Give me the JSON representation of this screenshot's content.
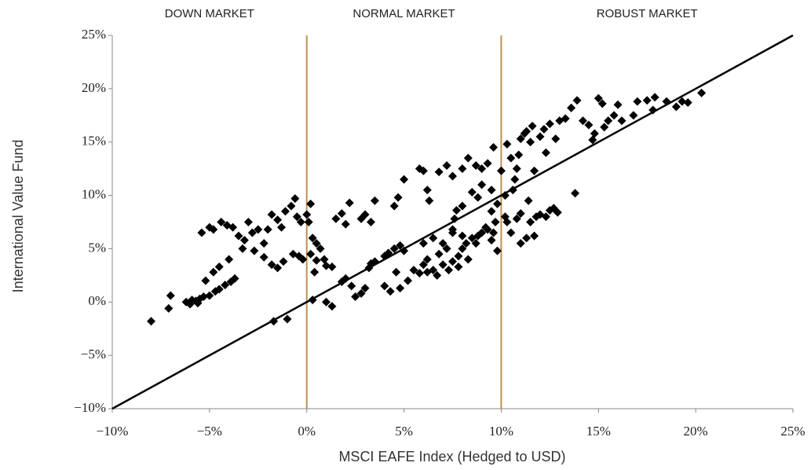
{
  "chart_data": {
    "type": "scatter",
    "x_label": "MSCI EAFE Index (Hedged to USD)",
    "y_label": "International Value Fund",
    "regions": [
      "DOWN MARKET",
      "NORMAL MARKET",
      "ROBUST MARKET"
    ],
    "vlines": [
      0,
      10
    ],
    "vline_color": "#c09050",
    "identity_line": true,
    "color": "#000000",
    "xlim": [
      -10,
      25
    ],
    "ylim": [
      -10,
      25
    ],
    "xticks": [
      {
        "value": -10,
        "label": "−10%"
      },
      {
        "value": -5,
        "label": "−5%"
      },
      {
        "value": 0,
        "label": "0%"
      },
      {
        "value": 5,
        "label": "5%"
      },
      {
        "value": 10,
        "label": "10%"
      },
      {
        "value": 15,
        "label": "15%"
      },
      {
        "value": 20,
        "label": "20%"
      },
      {
        "value": 25,
        "label": "25%"
      }
    ],
    "yticks": [
      {
        "value": -10,
        "label": "−10%"
      },
      {
        "value": -5,
        "label": "−5%"
      },
      {
        "value": 0,
        "label": "0%"
      },
      {
        "value": 5,
        "label": "5%"
      },
      {
        "value": 10,
        "label": "10%"
      },
      {
        "value": 15,
        "label": "15%"
      },
      {
        "value": 20,
        "label": "20%"
      },
      {
        "value": 25,
        "label": "25%"
      }
    ],
    "x": [
      -8,
      -7,
      -7.1,
      -6.2,
      -6,
      -5.9,
      -5.7,
      -5.5,
      -5.3,
      -5.6,
      -5,
      -4.7,
      -4.5,
      -4.2,
      -3.9,
      -5.2,
      -5.4,
      -5,
      -4.8,
      -4.4,
      -4.1,
      -3.8,
      -3.5,
      -3.2,
      -3,
      -2.8,
      -2.5,
      -2.2,
      -2,
      -1.8,
      -1.5,
      -1.3,
      -1.1,
      -0.8,
      -0.6,
      -0.5,
      -0.3,
      -4.5,
      -4,
      -3.7,
      -1.8,
      -1.5,
      -1.2,
      -0.7,
      -0.4,
      -0.2,
      -1.7,
      -1,
      -4.8,
      -3.3,
      -2.7,
      -2.2,
      0,
      0.2,
      0.1,
      0.3,
      0.5,
      0.7,
      0.9,
      1,
      0.5,
      0.2,
      0.4,
      0.3,
      1,
      1.3,
      1.3,
      1.5,
      1.8,
      2,
      2.2,
      2.8,
      3,
      3.3,
      3.5,
      4.5,
      4.7,
      5,
      1.8,
      2,
      2.3,
      2.5,
      2.8,
      3,
      3.2,
      3.5,
      3.3,
      4,
      4.2,
      4.5,
      4.8,
      5,
      4,
      4.3,
      4.8,
      5.2,
      4.6,
      5.5,
      5.8,
      6,
      6.2,
      6.5,
      6.8,
      7,
      7.2,
      7.5,
      7.8,
      8,
      8.2,
      8.5,
      8.8,
      9,
      9.3,
      9.5,
      9.8,
      6,
      6.5,
      7,
      7.5,
      8,
      6.2,
      6.7,
      7.3,
      7.8,
      8.3,
      8.7,
      9.2,
      9.6,
      5.8,
      6,
      6.3,
      6.2,
      6.8,
      7.2,
      7.5,
      8,
      8.3,
      8.7,
      9,
      9.3,
      9.6,
      9.5,
      9.8,
      8.5,
      8.8,
      9,
      7.5,
      7.6,
      7.7,
      8,
      9.5,
      9.7,
      10,
      10.2,
      10.3,
      10.5,
      10.8,
      11,
      11.2,
      11.5,
      11.6,
      12,
      12.2,
      12.5,
      12.8,
      13,
      13.3,
      13.6,
      13.9,
      14.2,
      14.5,
      14.8,
      15,
      15.3,
      15.5,
      15.8,
      16,
      14.7,
      15.2,
      16.2,
      17,
      17.5,
      17.8,
      17.9,
      18.5,
      19,
      19.3,
      19.6,
      20.3,
      16.8,
      13.8,
      10.3,
      10.5,
      10.8,
      11,
      11.3,
      11.5,
      11.7,
      11.8,
      12,
      12.3,
      12.5,
      12.7,
      12.9,
      11,
      10.2,
      10.7,
      11.4,
      11.7,
      10.6,
      12.3,
      11.3,
      10.9
    ],
    "values": [
      -1.8,
      0.6,
      -0.6,
      0,
      -0.2,
      0.2,
      0.1,
      0.3,
      0.5,
      -0.1,
      0.6,
      1,
      1.2,
      1.6,
      1.9,
      2,
      6.5,
      7,
      6.8,
      7.5,
      7.2,
      7,
      6.2,
      5.8,
      7.5,
      6.5,
      6.8,
      5.5,
      6.8,
      8.2,
      7.7,
      7,
      8.5,
      9,
      9.7,
      8,
      7.5,
      3.3,
      4,
      2.2,
      3.5,
      3.2,
      3.8,
      4.5,
      4.3,
      4,
      -1.8,
      -1.6,
      2.8,
      5,
      4.8,
      4.2,
      8.2,
      9.2,
      7.5,
      6,
      5.5,
      5,
      4,
      3.4,
      3.9,
      4.5,
      2.8,
      0.2,
      0,
      -0.4,
      3.3,
      7.8,
      8.3,
      7.3,
      9.3,
      7.8,
      8.2,
      7.5,
      9.5,
      9,
      9.8,
      11.5,
      1.9,
      2.2,
      1.5,
      0.5,
      0.8,
      1.3,
      3.2,
      3.8,
      3.6,
      4.3,
      4.6,
      5,
      5.3,
      4.8,
      1.5,
      1,
      1.3,
      2,
      2.8,
      3,
      2.7,
      3.5,
      4,
      3,
      4.5,
      3.5,
      5,
      3.8,
      4.3,
      5,
      5.5,
      6,
      6.2,
      6.5,
      6.8,
      5.8,
      4.8,
      5.5,
      6,
      5.5,
      6.5,
      6.2,
      2.8,
      2.5,
      3,
      3.3,
      4,
      5.5,
      7,
      6.5,
      12.5,
      12.3,
      9.5,
      10.5,
      12.2,
      12.8,
      11.8,
      12.5,
      13.5,
      12.8,
      12.5,
      13,
      14.5,
      10.5,
      9.2,
      10.3,
      9.8,
      11,
      6.8,
      7.8,
      8.6,
      9,
      8.5,
      7.5,
      12.3,
      10,
      14.8,
      13.5,
      12.5,
      15.3,
      15.8,
      15,
      16.5,
      15.5,
      16.2,
      16.7,
      15.3,
      17,
      17.2,
      18.2,
      18.9,
      17,
      16.6,
      15.8,
      19.1,
      16.4,
      17,
      17.5,
      18.5,
      15.2,
      18.6,
      17,
      18.8,
      18.9,
      18,
      19.2,
      18.8,
      18.3,
      18.8,
      18.7,
      19.6,
      17.5,
      10.2,
      7.5,
      6.5,
      7.8,
      5.5,
      6,
      7.5,
      6.2,
      8,
      8.2,
      8,
      8.6,
      8.8,
      8.4,
      8.3,
      8,
      11.5,
      9.5,
      12.3,
      10.5,
      14,
      16,
      13.8
    ]
  }
}
